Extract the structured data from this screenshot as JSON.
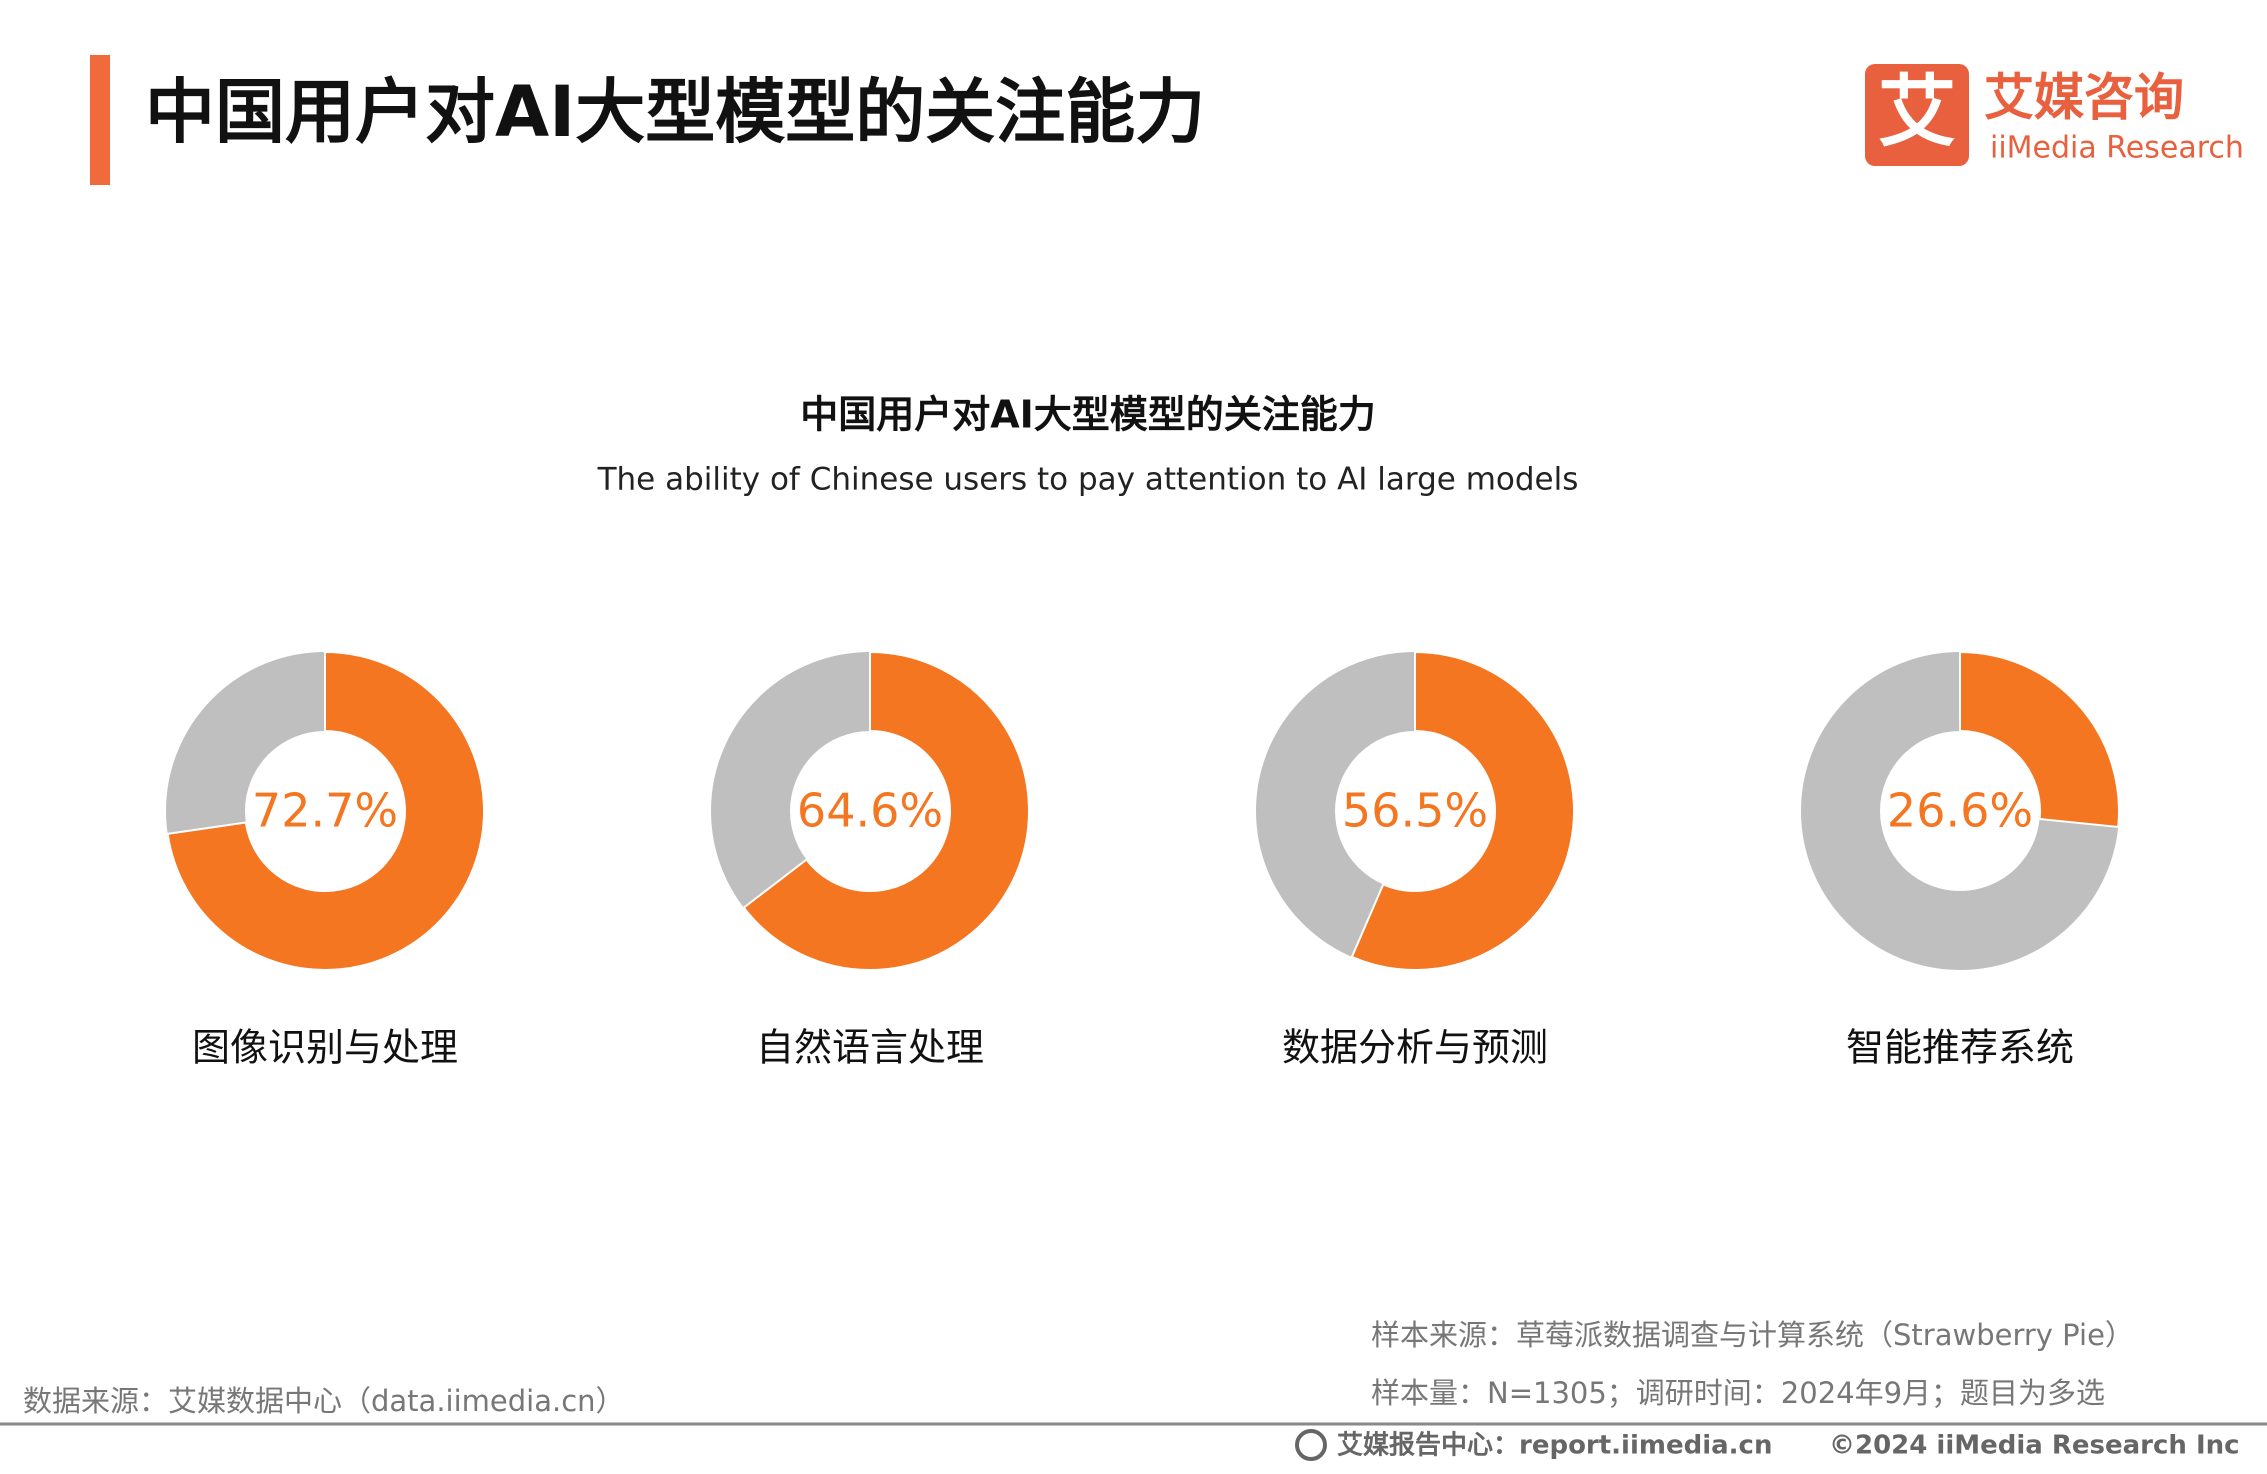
{
  "header": {
    "title": "中国用户对AI大型模型的关注能力",
    "logo_mark": "艾",
    "logo_name": "艾媒咨询",
    "logo_sub": "iiMedia Research"
  },
  "chart_data": {
    "type": "donut",
    "title": "中国用户对AI大型模型的关注能力",
    "subtitle": "The ability of Chinese users to pay attention to AI large models",
    "categories": [
      "图像识别与处理",
      "自然语言处理",
      "数据分析与预测",
      "智能推荐系统"
    ],
    "values": [
      72.7,
      64.6,
      56.5,
      26.6
    ],
    "value_labels": [
      "72.7%",
      "64.6%",
      "56.5%",
      "26.6%"
    ],
    "color": "#f47620",
    "rest_color": "#bfbfbf"
  },
  "notes": {
    "sample_source": "样本来源：草莓派数据调查与计算系统（Strawberry Pie）",
    "sample_size": "样本量：N=1305；调研时间：2024年9月；题目为多选",
    "data_source": "数据来源：艾媒数据中心（data.iimedia.cn）"
  },
  "footer": {
    "report_center": "艾媒报告中心：report.iimedia.cn",
    "copyright": "©2024  iiMedia Research  Inc"
  }
}
